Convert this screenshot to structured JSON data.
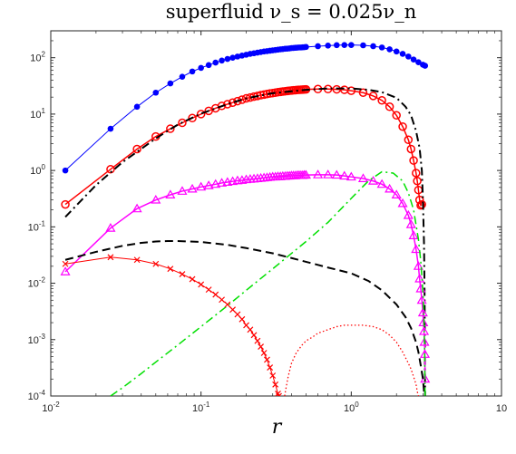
{
  "chart_data": {
    "type": "line",
    "title": "superfluid ν_s = 0.025ν_n",
    "xlabel": "r",
    "ylabel": "",
    "xscale": "log",
    "yscale": "log",
    "xlim": [
      0.01,
      10
    ],
    "ylim": [
      0.0001,
      300
    ],
    "grid": false,
    "x_ticks": [
      {
        "value": 0.01,
        "base": "10",
        "exp": "-2"
      },
      {
        "value": 0.1,
        "base": "10",
        "exp": "-1"
      },
      {
        "value": 1,
        "base": "10",
        "exp": "0"
      },
      {
        "value": 10,
        "base": "10",
        "exp": ""
      }
    ],
    "y_ticks": [
      {
        "value": 0.0001,
        "base": "10",
        "exp": "-4"
      },
      {
        "value": 0.001,
        "base": "10",
        "exp": "-3"
      },
      {
        "value": 0.01,
        "base": "10",
        "exp": "-2"
      },
      {
        "value": 0.1,
        "base": "10",
        "exp": "-1"
      },
      {
        "value": 1,
        "base": "10",
        "exp": "0"
      },
      {
        "value": 10,
        "base": "10",
        "exp": "1"
      },
      {
        "value": 100,
        "base": "10",
        "exp": "2"
      }
    ],
    "series": [
      {
        "color": "#0000ff",
        "dash": "solid",
        "width": 1,
        "marker": "dot",
        "x": [
          0.0125,
          0.025,
          0.0375,
          0.05,
          0.0625,
          0.075,
          0.0875,
          0.1,
          0.1125,
          0.125,
          0.1375,
          0.15,
          0.1625,
          0.175,
          0.1875,
          0.2,
          0.2125,
          0.225,
          0.2375,
          0.25,
          0.2625,
          0.275,
          0.2875,
          0.3,
          0.3125,
          0.325,
          0.3375,
          0.35,
          0.3625,
          0.375,
          0.3875,
          0.4,
          0.4125,
          0.425,
          0.4375,
          0.45,
          0.4625,
          0.475,
          0.4875,
          0.5,
          0.6,
          0.7,
          0.8,
          0.9,
          1.0,
          1.2,
          1.4,
          1.6,
          1.8,
          2.0,
          2.2,
          2.4,
          2.6,
          2.8,
          3.0,
          3.1
        ],
        "y": [
          1.0,
          5.5,
          13.5,
          24,
          35,
          46,
          57,
          66,
          74,
          82,
          89,
          95,
          100,
          105,
          109,
          113,
          117,
          120,
          123,
          126,
          129,
          131,
          133,
          135,
          137,
          139,
          141,
          142,
          144,
          145,
          146,
          148,
          149,
          150,
          151,
          152,
          152,
          153,
          154,
          155,
          160,
          164,
          167,
          168,
          168,
          166,
          160,
          152,
          141,
          129,
          117,
          105,
          93,
          83,
          75,
          72
        ]
      },
      {
        "color": "#ff0000",
        "dash": "solid",
        "width": 1.5,
        "marker": "circle",
        "x": [
          0.0125,
          0.025,
          0.0375,
          0.05,
          0.0625,
          0.075,
          0.0875,
          0.1,
          0.1125,
          0.125,
          0.1375,
          0.15,
          0.1625,
          0.175,
          0.1875,
          0.2,
          0.2125,
          0.225,
          0.2375,
          0.25,
          0.2625,
          0.275,
          0.2875,
          0.3,
          0.3125,
          0.325,
          0.3375,
          0.35,
          0.3625,
          0.375,
          0.3875,
          0.4,
          0.4125,
          0.425,
          0.4375,
          0.45,
          0.4625,
          0.475,
          0.4875,
          0.5,
          0.6,
          0.7,
          0.8,
          0.9,
          1.0,
          1.2,
          1.4,
          1.6,
          1.8,
          2.0,
          2.2,
          2.4,
          2.5,
          2.6,
          2.7,
          2.75,
          2.8,
          2.85,
          2.9,
          2.95
        ],
        "y": [
          0.25,
          1.05,
          2.4,
          4.0,
          5.5,
          7.0,
          8.5,
          10,
          11.4,
          12.7,
          14,
          15,
          16,
          17,
          18,
          19,
          19.7,
          20.4,
          21,
          21.7,
          22.2,
          22.7,
          23.2,
          23.6,
          24,
          24.4,
          24.8,
          25.1,
          25.4,
          25.7,
          26,
          26.2,
          26.4,
          26.6,
          26.8,
          27,
          27.1,
          27.2,
          27.3,
          27.4,
          27.8,
          27.8,
          27.5,
          27,
          26,
          24,
          21,
          17.5,
          13.5,
          9.5,
          6,
          3.5,
          2.4,
          1.5,
          0.9,
          0.65,
          0.45,
          0.3,
          0.24,
          0.25
        ]
      },
      {
        "color": "#000000",
        "dash": "dashdot",
        "width": 2,
        "marker": "none",
        "x": [
          0.0125,
          0.02,
          0.03,
          0.05,
          0.07,
          0.1,
          0.15,
          0.2,
          0.3,
          0.5,
          0.7,
          1.0,
          1.3,
          1.6,
          2.0,
          2.3,
          2.5,
          2.7,
          2.85,
          2.95,
          3.0,
          3.05,
          3.08,
          3.1
        ],
        "y": [
          0.15,
          0.55,
          1.4,
          3.7,
          6.5,
          10.2,
          15,
          19,
          23.5,
          27,
          28.5,
          28.5,
          27,
          24.5,
          19.5,
          13.5,
          9.5,
          5.0,
          2.5,
          1.0,
          0.3,
          0.05,
          0.005,
          0.0001
        ]
      },
      {
        "color": "#ff00ff",
        "dash": "solid",
        "width": 1.5,
        "marker": "triangle",
        "x": [
          0.0125,
          0.025,
          0.0375,
          0.05,
          0.0625,
          0.075,
          0.0875,
          0.1,
          0.1125,
          0.125,
          0.1375,
          0.15,
          0.1625,
          0.175,
          0.1875,
          0.2,
          0.2125,
          0.225,
          0.2375,
          0.25,
          0.2625,
          0.275,
          0.2875,
          0.3,
          0.3125,
          0.325,
          0.3375,
          0.35,
          0.3625,
          0.375,
          0.3875,
          0.4,
          0.4125,
          0.425,
          0.4375,
          0.45,
          0.4625,
          0.475,
          0.4875,
          0.5,
          0.6,
          0.7,
          0.8,
          0.9,
          1.0,
          1.2,
          1.4,
          1.6,
          1.8,
          2.0,
          2.2,
          2.4,
          2.5,
          2.6,
          2.7,
          2.8,
          2.85,
          2.9,
          2.95,
          3.0,
          3.02,
          3.05,
          3.07,
          3.09,
          3.1
        ],
        "y": [
          0.016,
          0.095,
          0.21,
          0.3,
          0.37,
          0.43,
          0.47,
          0.51,
          0.54,
          0.57,
          0.6,
          0.62,
          0.64,
          0.66,
          0.67,
          0.69,
          0.7,
          0.71,
          0.72,
          0.73,
          0.74,
          0.75,
          0.76,
          0.77,
          0.77,
          0.78,
          0.78,
          0.79,
          0.79,
          0.8,
          0.8,
          0.81,
          0.81,
          0.81,
          0.82,
          0.82,
          0.82,
          0.82,
          0.83,
          0.83,
          0.84,
          0.84,
          0.83,
          0.8,
          0.77,
          0.72,
          0.65,
          0.57,
          0.47,
          0.37,
          0.26,
          0.16,
          0.11,
          0.07,
          0.04,
          0.02,
          0.012,
          0.008,
          0.005,
          0.003,
          0.002,
          0.0014,
          0.0009,
          0.00055,
          0.0002
        ]
      },
      {
        "color": "#000000",
        "dash": "dash",
        "width": 2,
        "marker": "none",
        "x": [
          0.0125,
          0.02,
          0.03,
          0.04,
          0.05,
          0.06,
          0.07,
          0.1,
          0.15,
          0.2,
          0.3,
          0.4,
          0.5,
          0.7,
          1.0,
          1.3,
          1.6,
          2.0,
          2.3,
          2.5,
          2.7,
          2.8,
          2.9,
          3.0,
          3.05,
          3.1
        ],
        "y": [
          0.026,
          0.036,
          0.046,
          0.052,
          0.055,
          0.056,
          0.056,
          0.054,
          0.048,
          0.042,
          0.034,
          0.028,
          0.024,
          0.019,
          0.015,
          0.011,
          0.0075,
          0.0042,
          0.0025,
          0.0016,
          0.0009,
          0.0006,
          0.00035,
          0.0002,
          0.00012,
          0.0001
        ]
      },
      {
        "color": "#00e000",
        "dash": "dashdot",
        "width": 1.5,
        "marker": "none",
        "x": [
          0.025,
          0.03,
          0.04,
          0.05,
          0.07,
          0.1,
          0.15,
          0.2,
          0.3,
          0.5,
          0.7,
          1.0,
          1.3,
          1.6,
          1.9,
          2.2,
          2.4,
          2.6,
          2.8,
          2.9,
          3.0,
          3.05,
          3.08,
          3.1
        ],
        "y": [
          0.0001,
          0.00014,
          0.00025,
          0.0004,
          0.0008,
          0.0017,
          0.004,
          0.0075,
          0.018,
          0.055,
          0.12,
          0.32,
          0.65,
          0.95,
          0.9,
          0.65,
          0.4,
          0.2,
          0.06,
          0.025,
          0.007,
          0.002,
          0.0006,
          0.0001
        ]
      },
      {
        "color": "#ff0000",
        "dash": "solid",
        "width": 1,
        "marker": "cross",
        "x": [
          0.0125,
          0.025,
          0.0375,
          0.05,
          0.0625,
          0.075,
          0.0875,
          0.1,
          0.1125,
          0.125,
          0.1375,
          0.15,
          0.1625,
          0.175,
          0.1875,
          0.2,
          0.2125,
          0.225,
          0.2375,
          0.25,
          0.2625,
          0.275,
          0.2875,
          0.3,
          0.3125,
          0.325,
          0.33
        ],
        "y": [
          0.022,
          0.029,
          0.026,
          0.022,
          0.018,
          0.0145,
          0.0118,
          0.0095,
          0.0077,
          0.0063,
          0.0051,
          0.0042,
          0.0034,
          0.0028,
          0.0023,
          0.0018,
          0.0015,
          0.0012,
          0.00095,
          0.00075,
          0.00058,
          0.00044,
          0.00032,
          0.00023,
          0.00016,
          0.00011,
          0.0001
        ]
      },
      {
        "color": "#ff0000",
        "dash": "dot",
        "width": 1.3,
        "marker": "none",
        "x": [
          0.36,
          0.38,
          0.4,
          0.43,
          0.47,
          0.5,
          0.55,
          0.6,
          0.7,
          0.8,
          0.9,
          1.0,
          1.2,
          1.4,
          1.6,
          1.8,
          2.0,
          2.2,
          2.4,
          2.5,
          2.6,
          2.7,
          2.75,
          2.8
        ],
        "y": [
          0.0001,
          0.00022,
          0.00038,
          0.00058,
          0.0008,
          0.00095,
          0.0011,
          0.0013,
          0.0015,
          0.0017,
          0.0018,
          0.0018,
          0.0018,
          0.0017,
          0.0015,
          0.0012,
          0.0009,
          0.0006,
          0.00038,
          0.0003,
          0.00022,
          0.00016,
          0.00012,
          0.0001
        ]
      }
    ]
  }
}
